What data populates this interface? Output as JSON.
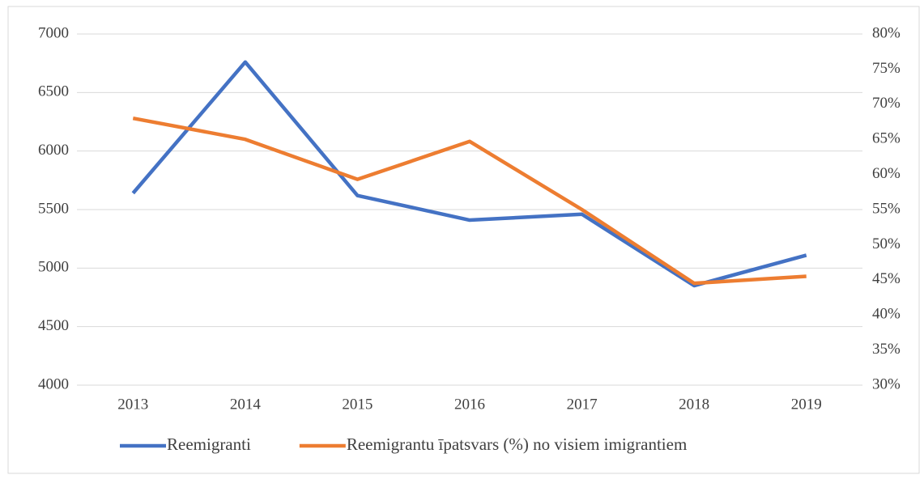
{
  "chart_data": {
    "type": "line",
    "categories": [
      "2013",
      "2014",
      "2015",
      "2016",
      "2017",
      "2018",
      "2019"
    ],
    "series": [
      {
        "name": "Reemigranti",
        "color": "#4472c4",
        "values": [
          5640,
          6760,
          5620,
          5410,
          5460,
          4850,
          5110
        ]
      },
      {
        "name": "Reemigrantu īpatsvars (%) no visiem imigrantiem",
        "color": "#ed7d31",
        "axis": "y2",
        "values": [
          68,
          65,
          59.3,
          64.7,
          55,
          44.5,
          45.5
        ]
      }
    ],
    "ylim": [
      4000,
      7000
    ],
    "yticks": [
      4000,
      4500,
      5000,
      5500,
      6000,
      6500,
      7000
    ],
    "y2lim": [
      30,
      80
    ],
    "y2ticks": [
      {
        "value": 30,
        "label": "30%"
      },
      {
        "value": 35,
        "label": "35%"
      },
      {
        "value": 40,
        "label": "40%"
      },
      {
        "value": 45,
        "label": "45%"
      },
      {
        "value": 50,
        "label": "50%"
      },
      {
        "value": 55,
        "label": "55%"
      },
      {
        "value": 60,
        "label": "60%"
      },
      {
        "value": 65,
        "label": "65%"
      },
      {
        "value": 70,
        "label": "70%"
      },
      {
        "value": 75,
        "label": "75%"
      },
      {
        "value": 80,
        "label": "80%"
      }
    ],
    "grid": true,
    "legend": "bottom"
  }
}
